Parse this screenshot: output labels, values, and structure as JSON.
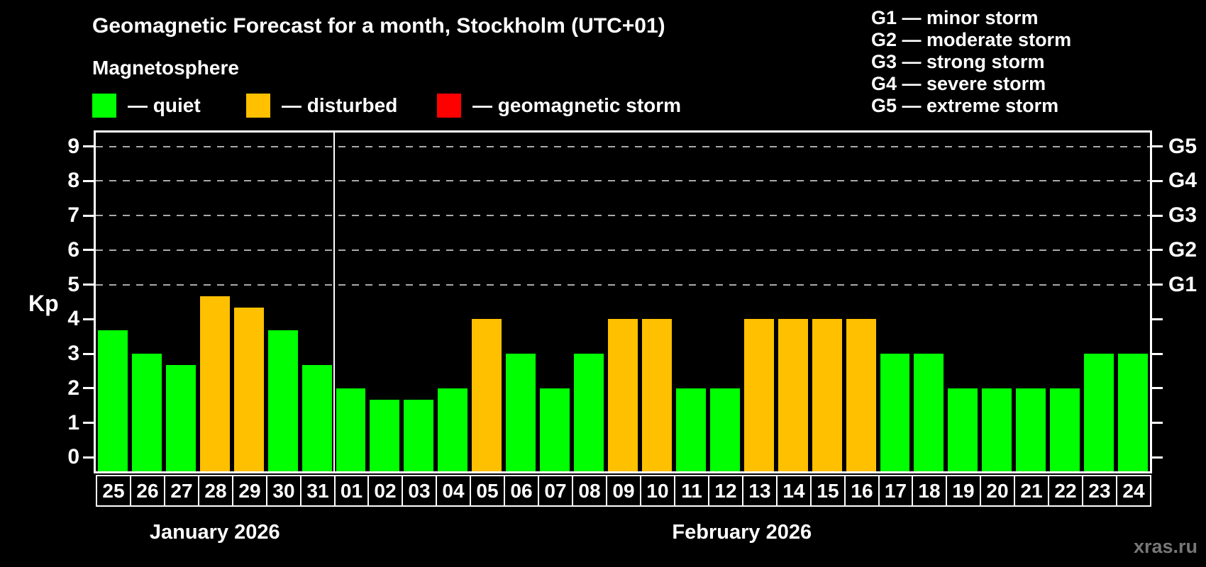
{
  "header": {
    "title": "Geomagnetic Forecast for a month, Stockholm (UTC+01)",
    "subtitle": "Magnetosphere"
  },
  "legend": {
    "items": [
      {
        "name": "quiet",
        "label": "— quiet",
        "color": "#00ff00"
      },
      {
        "name": "disturbed",
        "label": "— disturbed",
        "color": "#ffc000"
      },
      {
        "name": "geomagnetic-storm",
        "label": "— geomagnetic storm",
        "color": "#ff0000"
      }
    ]
  },
  "g_legend": {
    "lines": [
      "G1 — minor storm",
      "G2 — moderate storm",
      "G3 — strong storm",
      "G4 — severe storm",
      "G5 — extreme storm"
    ]
  },
  "watermark": "xras.ru",
  "chart_data": {
    "type": "bar",
    "title": "Geomagnetic Forecast for a month, Stockholm (UTC+01)",
    "subtitle": "Magnetosphere",
    "ylabel": "Kp",
    "ylim": [
      0,
      9
    ],
    "grid": "horizontal dashed lines at Kp 5-9 only",
    "legend_position": "top",
    "y_ticks": [
      0,
      1,
      2,
      3,
      4,
      5,
      6,
      7,
      8,
      9
    ],
    "gridlines_at": [
      5,
      6,
      7,
      8,
      9
    ],
    "right_axis": [
      {
        "label": "G1",
        "kp": 5
      },
      {
        "label": "G2",
        "kp": 6
      },
      {
        "label": "G3",
        "kp": 7
      },
      {
        "label": "G4",
        "kp": 8
      },
      {
        "label": "G5",
        "kp": 9
      }
    ],
    "status_colors": {
      "quiet": "#00ff00",
      "disturbed": "#ffc000",
      "storm": "#ff0000"
    },
    "months": [
      {
        "label": "January 2026",
        "days": [
          {
            "day": "25",
            "kp": 3.67,
            "status": "quiet"
          },
          {
            "day": "26",
            "kp": 3.0,
            "status": "quiet"
          },
          {
            "day": "27",
            "kp": 2.67,
            "status": "quiet"
          },
          {
            "day": "28",
            "kp": 4.67,
            "status": "disturbed"
          },
          {
            "day": "29",
            "kp": 4.33,
            "status": "disturbed"
          },
          {
            "day": "30",
            "kp": 3.67,
            "status": "quiet"
          },
          {
            "day": "31",
            "kp": 2.67,
            "status": "quiet"
          }
        ]
      },
      {
        "label": "February 2026",
        "days": [
          {
            "day": "01",
            "kp": 2.0,
            "status": "quiet"
          },
          {
            "day": "02",
            "kp": 1.67,
            "status": "quiet"
          },
          {
            "day": "03",
            "kp": 1.67,
            "status": "quiet"
          },
          {
            "day": "04",
            "kp": 2.0,
            "status": "quiet"
          },
          {
            "day": "05",
            "kp": 4.0,
            "status": "disturbed"
          },
          {
            "day": "06",
            "kp": 3.0,
            "status": "quiet"
          },
          {
            "day": "07",
            "kp": 2.0,
            "status": "quiet"
          },
          {
            "day": "08",
            "kp": 3.0,
            "status": "quiet"
          },
          {
            "day": "09",
            "kp": 4.0,
            "status": "disturbed"
          },
          {
            "day": "10",
            "kp": 4.0,
            "status": "disturbed"
          },
          {
            "day": "11",
            "kp": 2.0,
            "status": "quiet"
          },
          {
            "day": "12",
            "kp": 2.0,
            "status": "quiet"
          },
          {
            "day": "13",
            "kp": 4.0,
            "status": "disturbed"
          },
          {
            "day": "14",
            "kp": 4.0,
            "status": "disturbed"
          },
          {
            "day": "15",
            "kp": 4.0,
            "status": "disturbed"
          },
          {
            "day": "16",
            "kp": 4.0,
            "status": "disturbed"
          },
          {
            "day": "17",
            "kp": 3.0,
            "status": "quiet"
          },
          {
            "day": "18",
            "kp": 3.0,
            "status": "quiet"
          },
          {
            "day": "19",
            "kp": 2.0,
            "status": "quiet"
          },
          {
            "day": "20",
            "kp": 2.0,
            "status": "quiet"
          },
          {
            "day": "21",
            "kp": 2.0,
            "status": "quiet"
          },
          {
            "day": "22",
            "kp": 2.0,
            "status": "quiet"
          },
          {
            "day": "23",
            "kp": 3.0,
            "status": "quiet"
          },
          {
            "day": "24",
            "kp": 3.0,
            "status": "quiet"
          }
        ]
      }
    ]
  }
}
